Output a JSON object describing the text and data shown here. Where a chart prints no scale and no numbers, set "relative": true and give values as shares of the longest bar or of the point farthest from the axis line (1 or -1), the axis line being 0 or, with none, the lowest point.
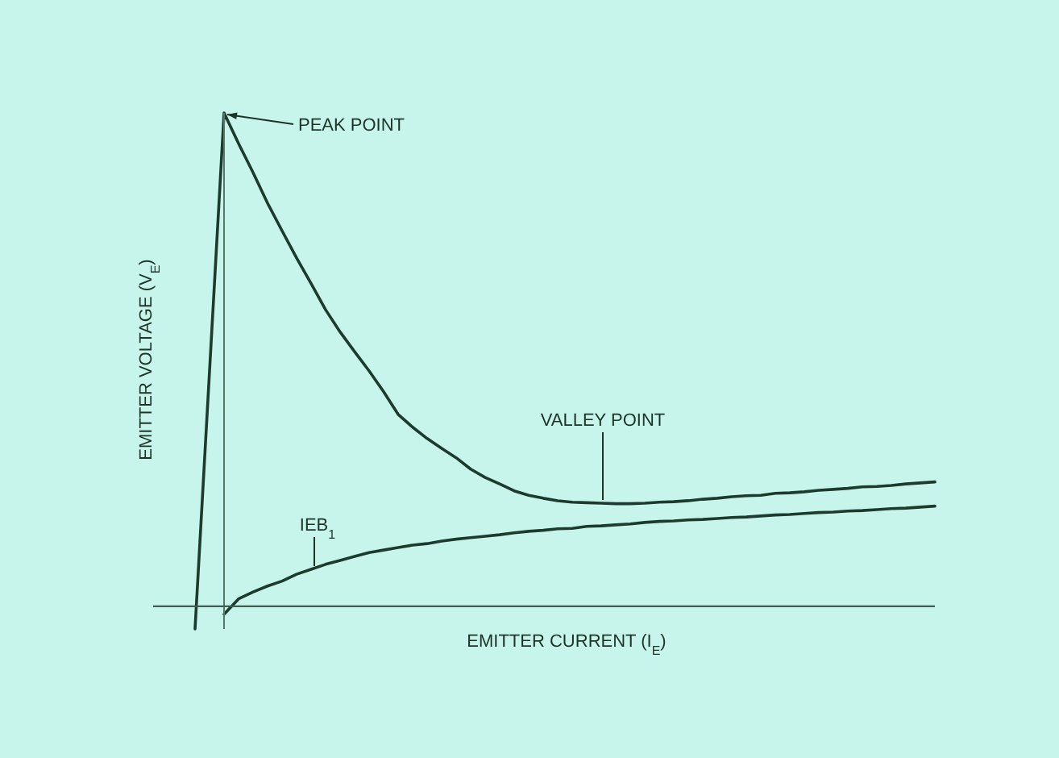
{
  "chart_data": {
    "type": "line",
    "xlabel": "EMITTER CURRENT (I$_{E}$)",
    "ylabel": "EMITTER VOLTAGE (V$_{E}$)",
    "relative": true,
    "categories": [
      null,
      null,
      null,
      null,
      null,
      null,
      null,
      null,
      null,
      null,
      null,
      null,
      null,
      null,
      null,
      null,
      null,
      null,
      null,
      null,
      null,
      null,
      null,
      null,
      null,
      null,
      null,
      null,
      null,
      null,
      null,
      null,
      null,
      null,
      null,
      null,
      null,
      null,
      null,
      null,
      null,
      null,
      null,
      null,
      null,
      null,
      null,
      null,
      null,
      null,
      null,
      null
    ],
    "series": [
      {
        "color": "#1d3a2f",
        "values": [
          -0.046,
          0.477,
          1,
          0.938,
          0.879,
          0.817,
          0.761,
          0.706,
          0.654,
          0.601,
          0.556,
          0.516,
          0.477,
          0.435,
          0.389,
          0.363,
          0.34,
          0.32,
          0.301,
          0.278,
          0.261,
          0.248,
          0.234,
          0.225,
          0.219,
          0.214,
          0.211,
          0.21,
          0.209,
          0.208,
          0.208,
          0.209,
          0.211,
          0.212,
          0.214,
          0.217,
          0.219,
          0.222,
          0.224,
          0.225,
          0.229,
          0.23,
          0.232,
          0.235,
          0.237,
          0.239,
          0.242,
          0.243,
          0.245,
          0.248,
          0.25,
          0.252
        ]
      },
      {
        "color": "#1d3a2f",
        "values": [
          null,
          null,
          -0.016,
          0.015,
          0.029,
          0.041,
          0.051,
          0.065,
          0.075,
          0.085,
          0.093,
          0.101,
          0.109,
          0.114,
          0.119,
          0.124,
          0.127,
          0.132,
          0.136,
          0.139,
          0.142,
          0.145,
          0.149,
          0.152,
          0.154,
          0.157,
          0.158,
          0.162,
          0.163,
          0.165,
          0.167,
          0.17,
          0.172,
          0.173,
          0.175,
          0.176,
          0.178,
          0.18,
          0.181,
          0.183,
          0.185,
          0.186,
          0.188,
          0.19,
          0.191,
          0.193,
          0.194,
          0.196,
          0.198,
          0.199,
          0.201,
          0.203
        ]
      }
    ],
    "ref_lines": [
      {
        "axis": "y",
        "value": 0,
        "color": "#3d5c52"
      }
    ],
    "annotations": [
      "PEAK POINT",
      "VALLEY POINT",
      "IEB$_{1}$"
    ]
  }
}
